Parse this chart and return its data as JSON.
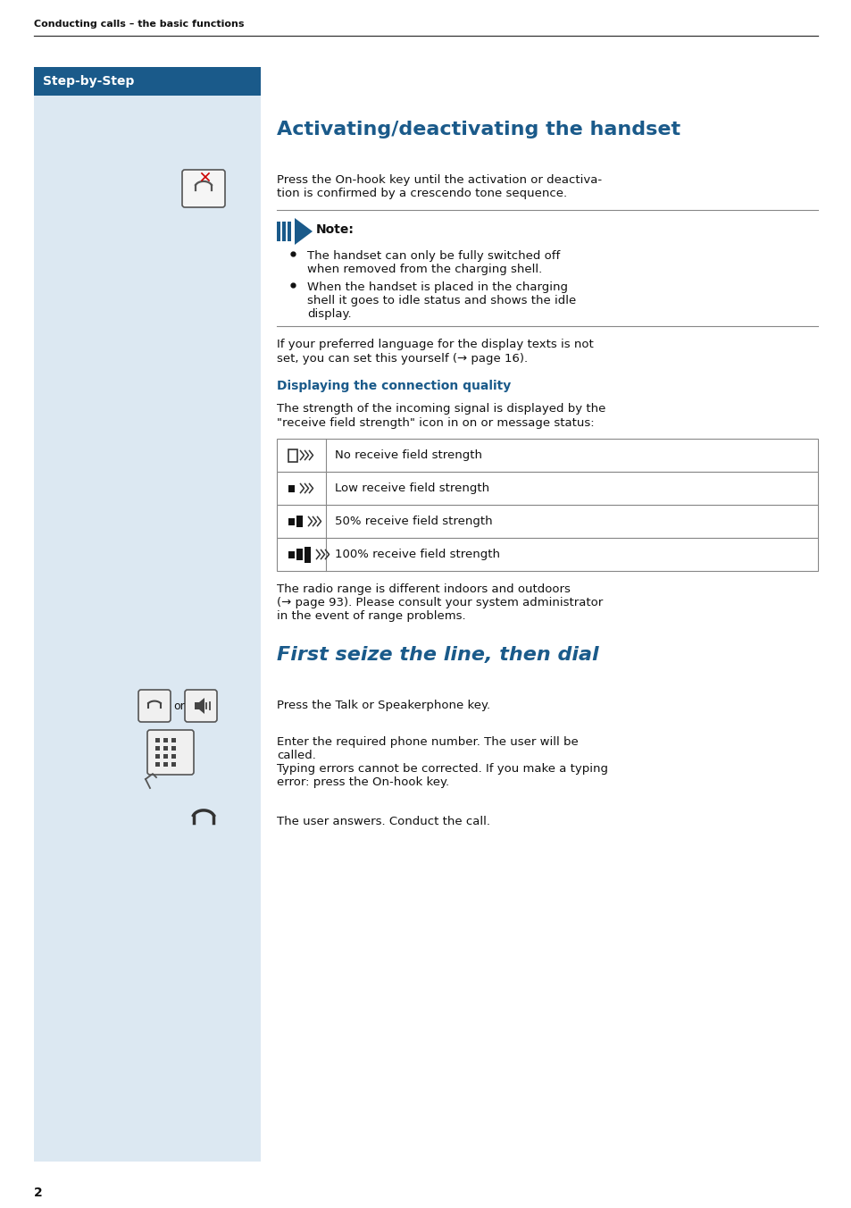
{
  "page_bg": "#ffffff",
  "left_panel_bg": "#dce8f0",
  "header_bar_bg": "#1a5a8a",
  "header_bar_text": "Step-by-Step",
  "header_bar_text_color": "#ffffff",
  "top_label": "Conducting calls – the basic functions",
  "title1": "Activating/deactivating the handset",
  "title1_color": "#1a5a8a",
  "section2_title": "First seize the line, then dial",
  "section2_color": "#1a5a8a",
  "subheading_connection": "Displaying the connection quality",
  "subheading_color": "#1a5a8a",
  "note_label": "Note:",
  "body_color": "#111111",
  "separator_color": "#888888",
  "table_border_color": "#888888",
  "page_number": "2",
  "signal_labels": [
    "No receive field strength",
    "Low receive field strength",
    "50% receive field strength",
    "100% receive field strength"
  ]
}
